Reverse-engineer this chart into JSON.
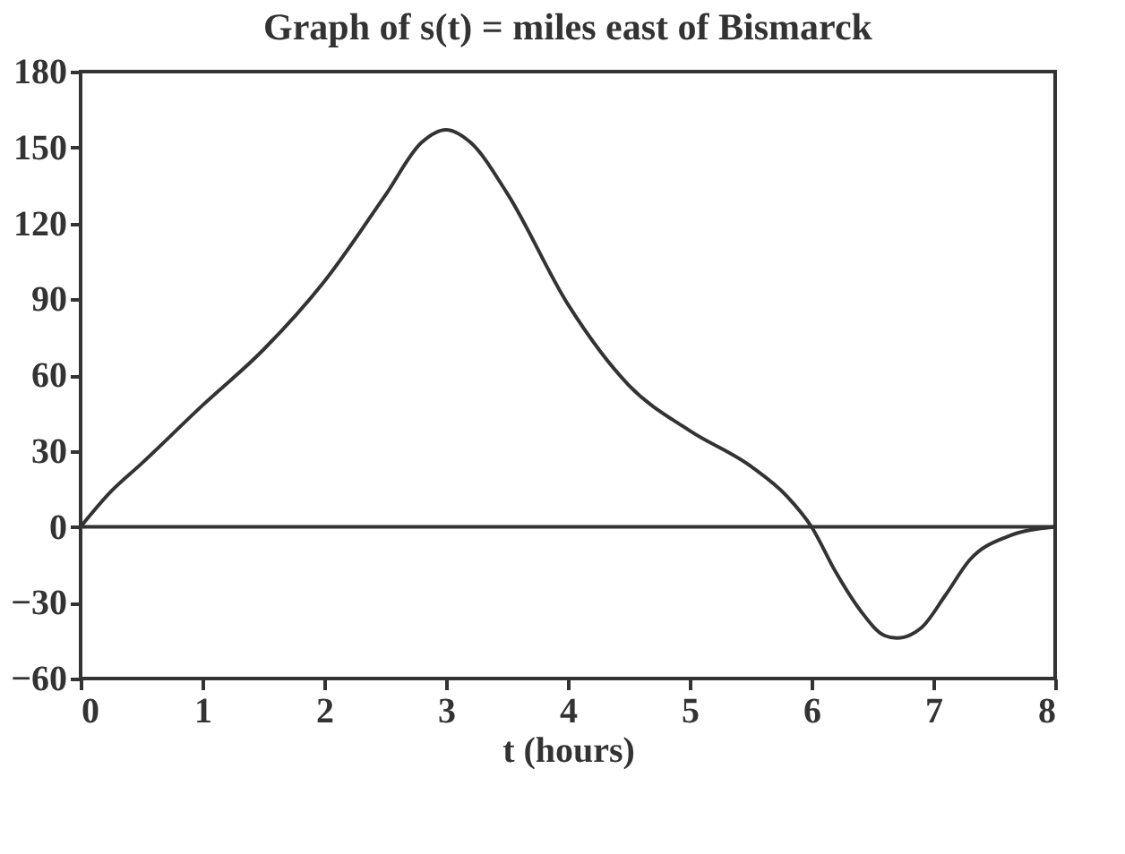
{
  "chart_data": {
    "type": "line",
    "title": "Graph of s(t) = miles east of Bismarck",
    "xlabel": "t (hours)",
    "x": [
      0,
      0.25,
      0.5,
      1,
      1.5,
      2,
      2.5,
      2.8,
      3,
      3.2,
      3.5,
      4,
      4.5,
      5,
      5.5,
      5.8,
      6,
      6.2,
      6.4,
      6.6,
      6.7,
      6.9,
      7.1,
      7.3,
      7.6,
      8
    ],
    "series": [
      {
        "color": "#333333",
        "values": [
          0,
          14,
          25,
          48,
          70,
          97,
          131,
          152,
          157,
          152,
          132,
          88,
          56,
          38,
          24,
          12,
          0,
          -18,
          -33,
          -43,
          -44,
          -40,
          -27,
          -13,
          -4,
          0
        ]
      }
    ],
    "xlim": [
      0,
      8
    ],
    "xticks": [
      0,
      1,
      2,
      3,
      4,
      5,
      6,
      7,
      8
    ],
    "ylim": [
      -60,
      180
    ],
    "yticks": [
      -60,
      -30,
      0,
      30,
      60,
      90,
      120,
      150,
      180
    ],
    "ref_lines": [
      {
        "axis": "y",
        "value": 0,
        "label": null,
        "color": "#333333"
      }
    ],
    "grid": false,
    "marker": "none",
    "line_style": "solid"
  }
}
